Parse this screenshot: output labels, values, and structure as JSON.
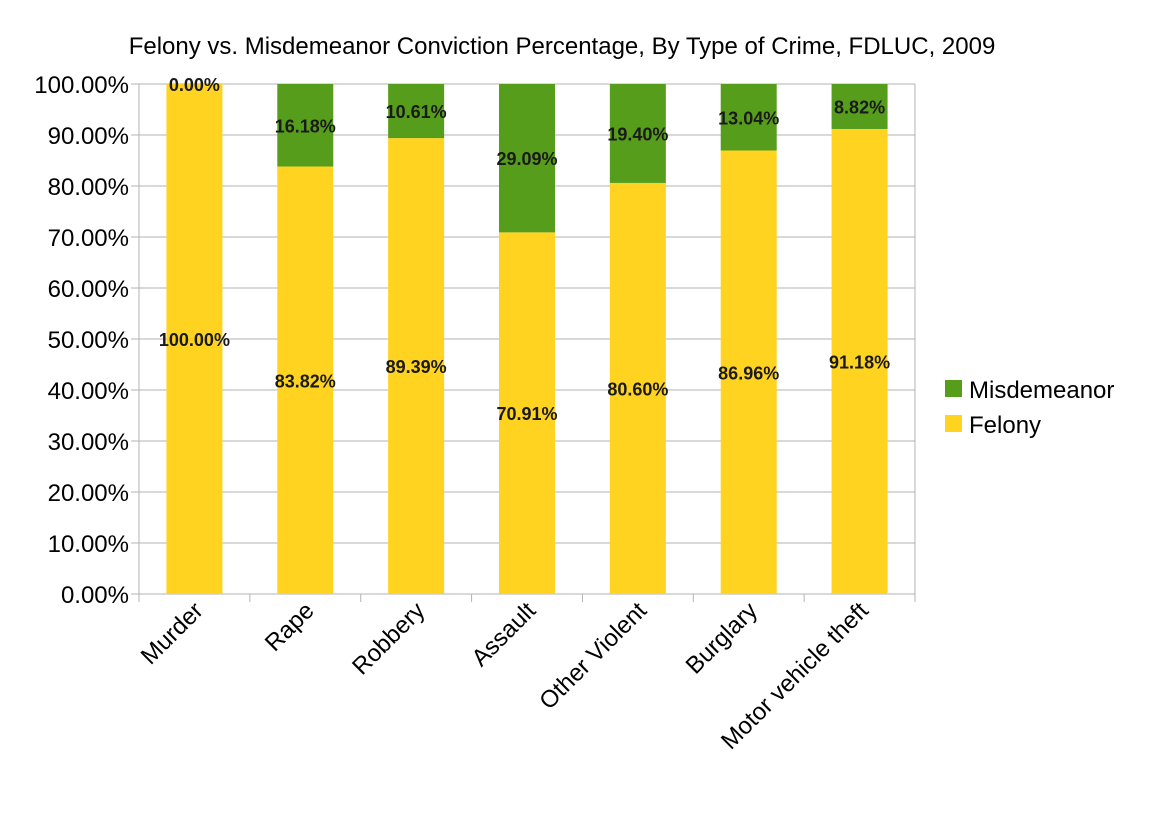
{
  "chart_data": {
    "type": "bar",
    "stacked": true,
    "title": "Felony vs. Misdemeanor Conviction Percentage, By Type of Crime, FDLUC, 2009",
    "xlabel": "",
    "ylabel": "",
    "categories": [
      "Murder",
      "Rape",
      "Robbery",
      "Assault",
      "Other Violent",
      "Burglary",
      "Motor vehicle theft"
    ],
    "series": [
      {
        "name": "Felony",
        "color": "#ffd320",
        "values": [
          100.0,
          83.82,
          89.39,
          70.91,
          80.6,
          86.96,
          91.18
        ],
        "labels": [
          "100.00%",
          "83.82%",
          "89.39%",
          "70.91%",
          "80.60%",
          "86.96%",
          "91.18%"
        ]
      },
      {
        "name": "Misdemeanor",
        "color": "#579d1c",
        "values": [
          0.0,
          16.18,
          10.61,
          29.09,
          19.4,
          13.04,
          8.82
        ],
        "labels": [
          "0.00%",
          "16.18%",
          "10.61%",
          "29.09%",
          "19.40%",
          "13.04%",
          "8.82%"
        ]
      }
    ],
    "ylim": [
      0,
      100
    ],
    "yticks": [
      "0.00%",
      "10.00%",
      "20.00%",
      "30.00%",
      "40.00%",
      "50.00%",
      "60.00%",
      "70.00%",
      "80.00%",
      "90.00%",
      "100.00%"
    ],
    "grid": true,
    "legend": {
      "placement": "right",
      "entries": [
        "Misdemeanor",
        "Felony"
      ]
    }
  }
}
